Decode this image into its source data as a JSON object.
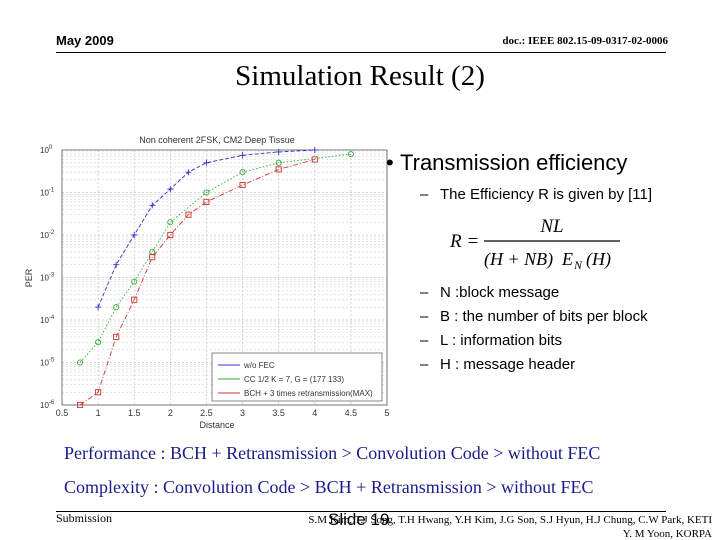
{
  "header": {
    "date": "May 2009",
    "doc_id": "doc.: IEEE 802.15-09-0317-02-0006"
  },
  "title": "Simulation Result (2)",
  "chart_data": {
    "type": "line",
    "title": "Non coherent 2FSK, CM2 Deep Tissue",
    "xlabel": "Distance",
    "ylabel": "PER",
    "xlim": [
      0.5,
      5
    ],
    "ylim": [
      1e-06,
      1
    ],
    "yscale": "log",
    "x_ticks": [
      "0.5",
      "1",
      "1.5",
      "2",
      "2.5",
      "3",
      "3.5",
      "4",
      "4.5",
      "5"
    ],
    "y_ticks": [
      "10^0",
      "10^-1",
      "10^-2",
      "10^-3",
      "10^-4",
      "10^-5",
      "10^-6"
    ],
    "grid": true,
    "legend_position": "bottom-right",
    "series": [
      {
        "name": "w/o FEC",
        "color": "#3333cc",
        "marker": "plus",
        "x": [
          1.0,
          1.25,
          1.5,
          1.75,
          2.0,
          2.25,
          2.5,
          3.0,
          3.5,
          4.0
        ],
        "y": [
          0.0002,
          0.002,
          0.01,
          0.05,
          0.12,
          0.3,
          0.5,
          0.75,
          0.9,
          1.0
        ]
      },
      {
        "name": "CC 1/2 K = 7, G = (177 133)",
        "color": "#33aa33",
        "marker": "circle",
        "x": [
          0.75,
          1.0,
          1.25,
          1.5,
          1.75,
          2.0,
          2.5,
          3.0,
          3.5,
          4.5
        ],
        "y": [
          1e-05,
          3e-05,
          0.0002,
          0.0008,
          0.004,
          0.02,
          0.1,
          0.3,
          0.5,
          0.8
        ]
      },
      {
        "name": "BCH + 3 times retransmission(MAX)",
        "color": "#cc3333",
        "marker": "square",
        "x": [
          0.75,
          1.0,
          1.25,
          1.5,
          1.75,
          2.0,
          2.25,
          2.5,
          3.0,
          3.5,
          4.0
        ],
        "y": [
          1e-06,
          2e-06,
          4e-05,
          0.0003,
          0.003,
          0.01,
          0.03,
          0.06,
          0.15,
          0.35,
          0.6
        ]
      }
    ]
  },
  "bullets": {
    "main": "Transmission efficiency",
    "efficiency": "The Efficiency R is given by [11]",
    "items": [
      "N :block message",
      "B : the number of bits per block",
      "L : information bits",
      "H : message header"
    ]
  },
  "formula": {
    "lhs": "R =",
    "numerator": "NL",
    "den_paren": "(H + NB)",
    "den_e": "E",
    "den_sub": "N",
    "den_h": "(H)"
  },
  "performance": "Performance : BCH + Retransmission  >  Convolution Code  >  without FEC",
  "complexity": "Complexity : Convolution Code  > BCH + Retransmission  > without FEC",
  "footer": {
    "left": "Submission",
    "slide": "Slide 19",
    "authors_line1": "S.M Kim, T.J Song, T.H Hwang, Y.H Kim, J.G Son, S.J Hyun, H.J Chung, C.W Park, KETI",
    "authors_line2": "Y. M Yoon, KORPA"
  }
}
